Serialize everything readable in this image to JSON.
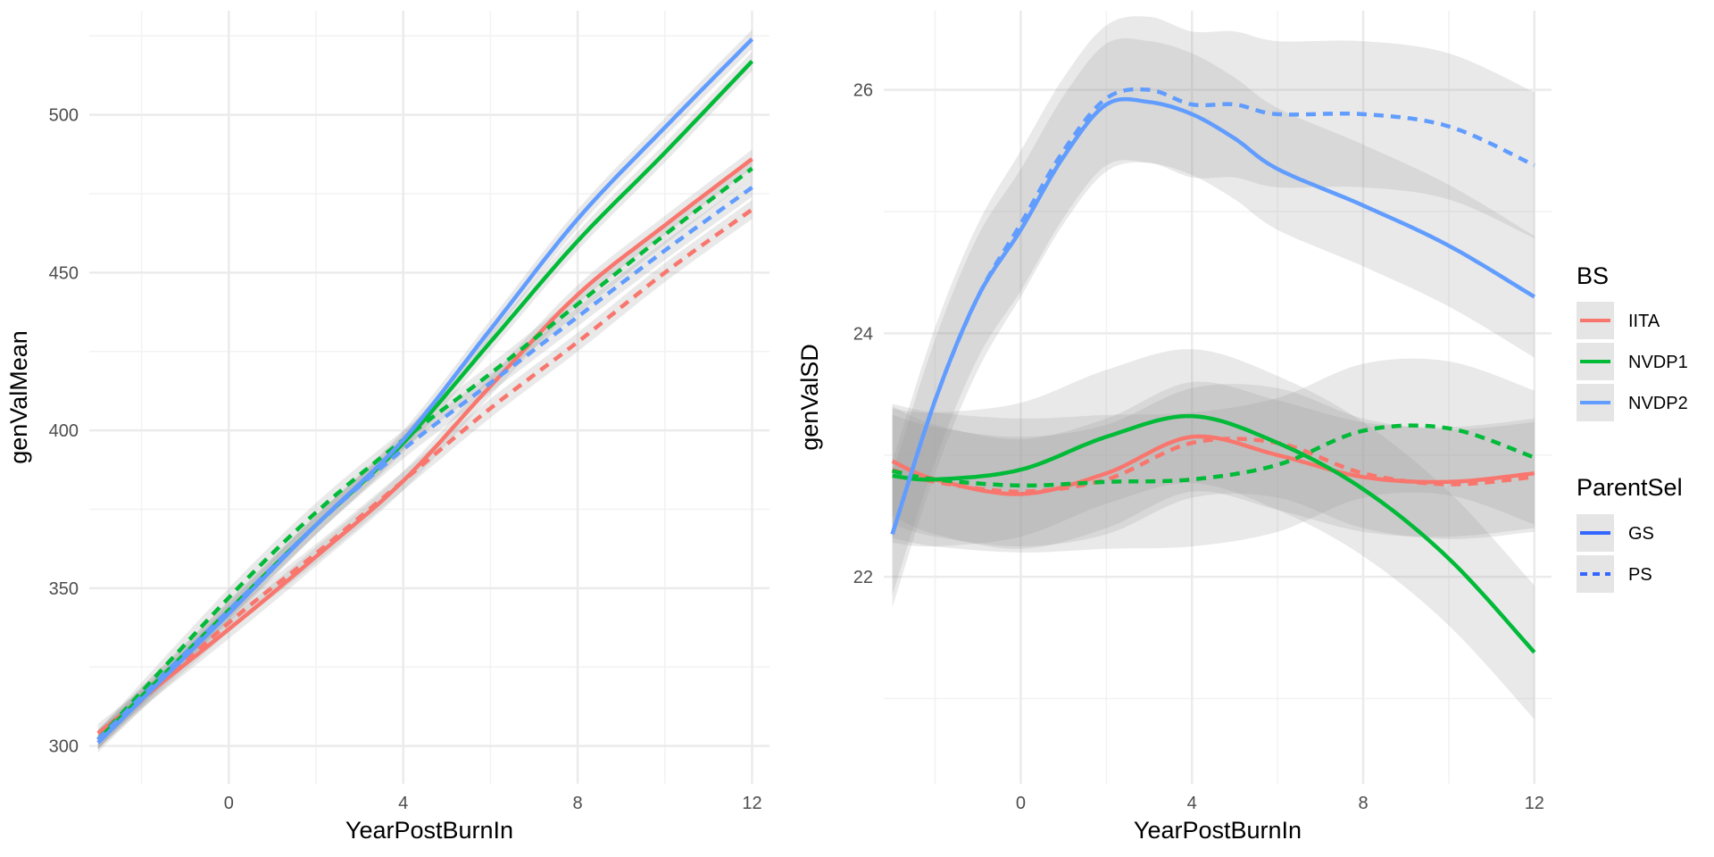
{
  "chart_data": [
    {
      "type": "line",
      "xlabel": "YearPostBurnIn",
      "ylabel": "genValMean",
      "xlim": [
        -3.2,
        12.4
      ],
      "ylim": [
        288,
        533
      ],
      "xticks": [
        0,
        4,
        8,
        12
      ],
      "yticks": [
        300,
        350,
        400,
        450,
        500
      ],
      "grid": true,
      "series": [
        {
          "bs": "IITA",
          "parent": "GS",
          "x": [
            -3,
            0,
            2,
            4,
            6,
            8,
            10,
            12
          ],
          "y": [
            304,
            337,
            360,
            384,
            414,
            443,
            465,
            486
          ],
          "band": 3
        },
        {
          "bs": "IITA",
          "parent": "PS",
          "x": [
            -3,
            0,
            2,
            4,
            6,
            8,
            10,
            12
          ],
          "y": [
            302,
            339,
            361,
            384,
            407,
            428,
            450,
            470
          ],
          "band": 3
        },
        {
          "bs": "NVDP1",
          "parent": "GS",
          "x": [
            -3,
            0,
            2,
            4,
            6,
            8,
            10,
            12
          ],
          "y": [
            302,
            343,
            370,
            396,
            428,
            460,
            488,
            517
          ],
          "band": 3
        },
        {
          "bs": "NVDP1",
          "parent": "PS",
          "x": [
            -3,
            0,
            2,
            4,
            6,
            8,
            10,
            12
          ],
          "y": [
            302,
            347,
            374,
            397,
            418,
            440,
            462,
            483
          ],
          "band": 3
        },
        {
          "bs": "NVDP2",
          "parent": "GS",
          "x": [
            -3,
            0,
            2,
            4,
            6,
            8,
            10,
            12
          ],
          "y": [
            301,
            342,
            370,
            397,
            432,
            467,
            496,
            524
          ],
          "band": 3
        },
        {
          "bs": "NVDP2",
          "parent": "PS",
          "x": [
            -3,
            0,
            2,
            4,
            6,
            8,
            10,
            12
          ],
          "y": [
            302,
            343,
            370,
            394,
            415,
            436,
            457,
            477
          ],
          "band": 3
        }
      ]
    },
    {
      "type": "line",
      "xlabel": "YearPostBurnIn",
      "ylabel": "genValSD",
      "xlim": [
        -3.2,
        12.4
      ],
      "ylim": [
        20.3,
        26.65
      ],
      "xticks": [
        0,
        4,
        8,
        12
      ],
      "yticks": [
        22,
        24,
        26
      ],
      "grid": true,
      "series": [
        {
          "bs": "IITA",
          "parent": "GS",
          "x": [
            -3,
            -2,
            0,
            2,
            4,
            6,
            8,
            10,
            12
          ],
          "y": [
            22.95,
            22.8,
            22.68,
            22.85,
            23.15,
            23.0,
            22.82,
            22.78,
            22.85
          ],
          "band": 0.45
        },
        {
          "bs": "IITA",
          "parent": "PS",
          "x": [
            -3,
            -2,
            0,
            2,
            4,
            6,
            8,
            10,
            12
          ],
          "y": [
            22.88,
            22.78,
            22.7,
            22.8,
            23.1,
            23.1,
            22.85,
            22.76,
            22.82
          ],
          "band": 0.45
        },
        {
          "bs": "NVDP1",
          "parent": "GS",
          "x": [
            -3,
            -2,
            0,
            2,
            4,
            6,
            8,
            10,
            12
          ],
          "y": [
            22.83,
            22.8,
            22.88,
            23.15,
            23.32,
            23.1,
            22.72,
            22.15,
            21.38
          ],
          "band": 0.55
        },
        {
          "bs": "NVDP1",
          "parent": "PS",
          "x": [
            -3,
            -2,
            0,
            2,
            4,
            6,
            8,
            10,
            12
          ],
          "y": [
            22.87,
            22.8,
            22.75,
            22.78,
            22.8,
            22.92,
            23.2,
            23.22,
            22.98
          ],
          "band": 0.55
        },
        {
          "bs": "NVDP2",
          "parent": "GS",
          "x": [
            -3,
            -2,
            -1,
            0,
            1,
            2,
            3,
            4,
            5,
            6,
            8,
            10,
            12
          ],
          "y": [
            22.35,
            23.45,
            24.3,
            24.85,
            25.45,
            25.88,
            25.9,
            25.8,
            25.6,
            25.35,
            25.05,
            24.72,
            24.3
          ],
          "band": 0.5
        },
        {
          "bs": "NVDP2",
          "parent": "PS",
          "x": [
            -3,
            -2,
            -1,
            0,
            1,
            2,
            3,
            4,
            5,
            6,
            8,
            10,
            12
          ],
          "y": [
            22.35,
            23.45,
            24.3,
            24.9,
            25.5,
            25.93,
            26.0,
            25.88,
            25.88,
            25.8,
            25.8,
            25.7,
            25.38
          ],
          "band": 0.6
        }
      ]
    }
  ],
  "legend": {
    "bs_title": "BS",
    "bs_items": [
      {
        "label": "IITA",
        "color": "#F8766D"
      },
      {
        "label": "NVDP1",
        "color": "#00BA38"
      },
      {
        "label": "NVDP2",
        "color": "#619CFF"
      }
    ],
    "ps_title": "ParentSel",
    "ps_items": [
      {
        "label": "GS",
        "linetype": "solid",
        "color": "#3366FF"
      },
      {
        "label": "PS",
        "linetype": "dashed",
        "color": "#3366FF"
      }
    ]
  },
  "colors": {
    "IITA": "#F8766D",
    "NVDP1": "#00BA38",
    "NVDP2": "#619CFF",
    "band": "#999999",
    "grid_major": "#EBEBEB",
    "grid_minor": "#F2F2F2"
  }
}
